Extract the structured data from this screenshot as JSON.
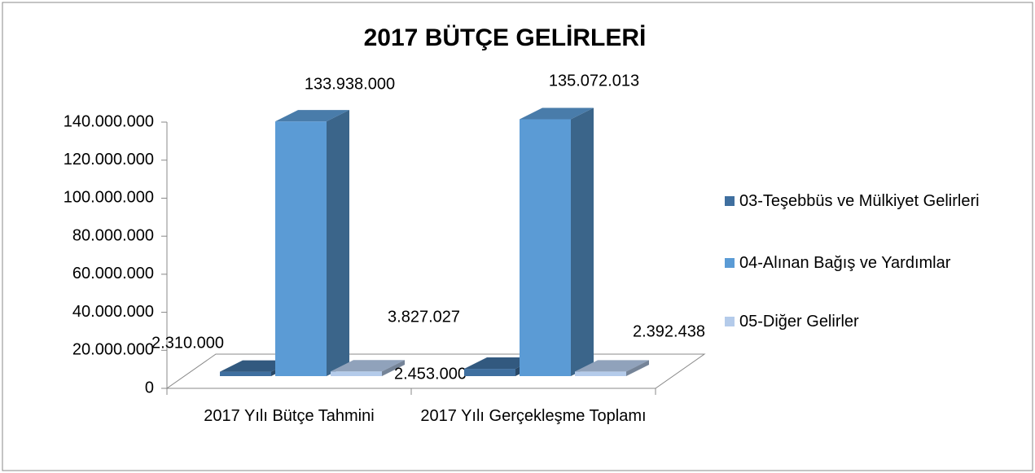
{
  "chart_data": {
    "type": "bar3d",
    "title": "2017 BÜTÇE GELİRLERİ",
    "categories": [
      "2017 Yılı Bütçe Tahmini",
      "2017 Yılı Gerçekleşme Toplamı"
    ],
    "series": [
      {
        "name": "03-Teşebbüs ve Mülkiyet Gelirleri",
        "color": "#3f6f9f",
        "values": [
          2310000,
          3827027
        ],
        "value_labels": [
          "2.310.000",
          "3.827.027"
        ]
      },
      {
        "name": "04-Alınan Bağış ve Yardımlar",
        "color": "#5b9bd5",
        "values": [
          133938000,
          135072013
        ],
        "value_labels": [
          "133.938.000",
          "135.072.013"
        ]
      },
      {
        "name": "05-Diğer Gelirler",
        "color": "#b4cbea",
        "values": [
          2453000,
          2392438
        ],
        "value_labels": [
          "2.453.000",
          "2.392.438"
        ]
      }
    ],
    "ylim": [
      0,
      140000000
    ],
    "yticks": [
      0,
      {
        "value": 20000000,
        "label": "20.000.000"
      },
      {
        "value": 40000000,
        "label": "40.000.000"
      },
      {
        "value": 60000000,
        "label": "60.000.000"
      },
      {
        "value": 80000000,
        "label": "80.000.000"
      },
      {
        "value": 100000000,
        "label": "100.000.000"
      },
      {
        "value": 120000000,
        "label": "120.000.000"
      },
      {
        "value": 140000000,
        "label": "140.000.000"
      }
    ],
    "legend": "right",
    "grid": false
  }
}
